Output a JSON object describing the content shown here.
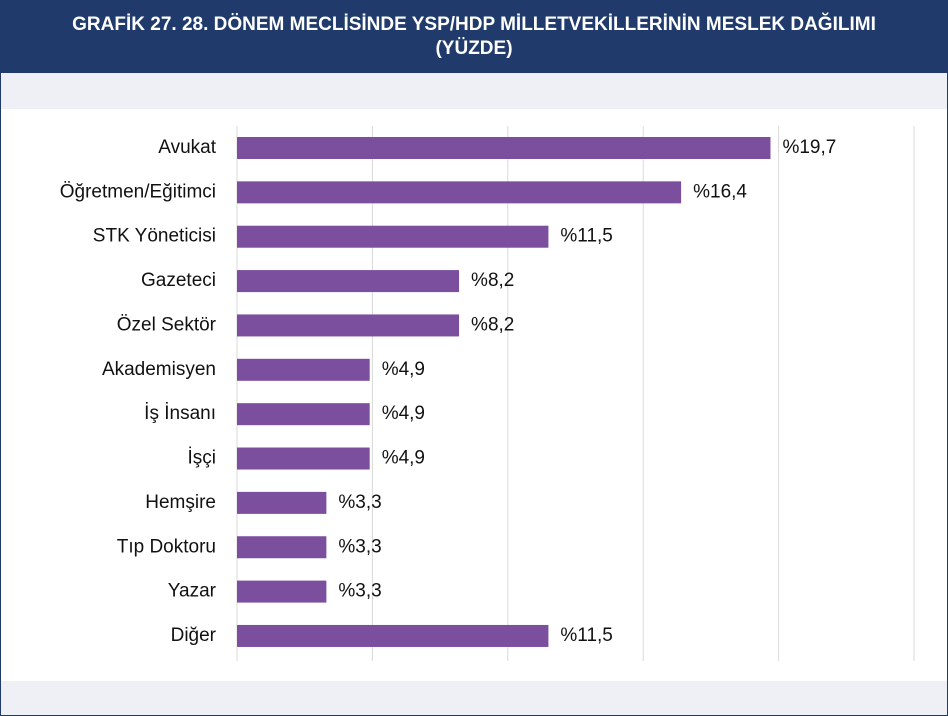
{
  "chart_data": {
    "type": "hbar",
    "title": "GRAFİK 27. 28. DÖNEM MECLİSİNDE YSP/HDP MİLLETVEKİLLERİNİN MESLEK DAĞILIMI (YÜZDE)",
    "categories": [
      "Avukat",
      "Öğretmen/Eğitimci",
      "STK Yöneticisi",
      "Gazeteci",
      "Özel Sektör",
      "Akademisyen",
      "İş İnsanı",
      "İşçi",
      "Hemşire",
      "Tıp Doktoru",
      "Yazar",
      "Diğer"
    ],
    "values": [
      19.7,
      16.4,
      11.5,
      8.2,
      8.2,
      4.9,
      4.9,
      4.9,
      3.3,
      3.3,
      3.3,
      11.5
    ],
    "value_labels": [
      "%19,7",
      "%16,4",
      "%11,5",
      "%8,2",
      "%8,2",
      "%4,9",
      "%4,9",
      "%4,9",
      "%3,3",
      "%3,3",
      "%3,3",
      "%11,5"
    ],
    "color": "#7b4f9e",
    "xlim": [
      0,
      25
    ],
    "xticks": [
      0,
      5,
      10,
      15,
      20,
      25
    ],
    "grid": true
  }
}
